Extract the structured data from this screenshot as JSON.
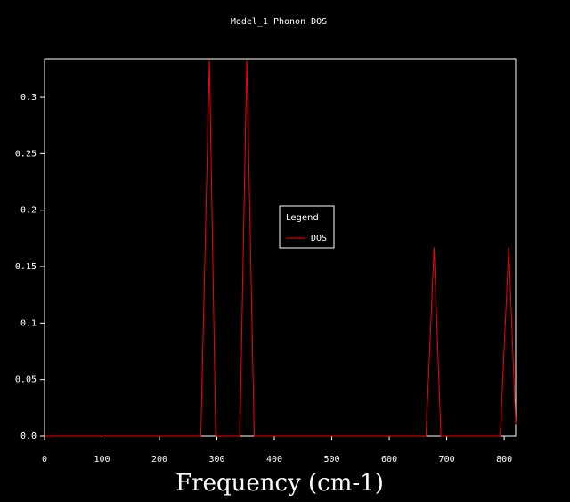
{
  "chart_data": {
    "type": "line",
    "title": "Model_1 Phonon DOS",
    "x_label": "Frequency (cm-1)",
    "x": [
      0,
      272,
      287,
      298,
      340,
      352,
      365,
      664,
      678,
      690,
      793,
      808,
      820
    ],
    "series": [
      {
        "name": "DOS",
        "color": "#ff0000",
        "values": [
          0,
          0,
          0.333,
          0,
          0,
          0.333,
          0,
          0,
          0.167,
          0,
          0,
          0.167,
          0.01
        ]
      }
    ],
    "xlim": [
      0,
      820
    ],
    "xticks": [
      0,
      100,
      200,
      300,
      400,
      500,
      600,
      700,
      800
    ],
    "ylim": [
      0,
      0.334
    ],
    "yticks": [
      {
        "value": 0,
        "label": "0.0"
      },
      0.05,
      0.1,
      0.15,
      0.2,
      0.25,
      0.3
    ],
    "legend_title": "Legend",
    "legend_position": "center"
  }
}
